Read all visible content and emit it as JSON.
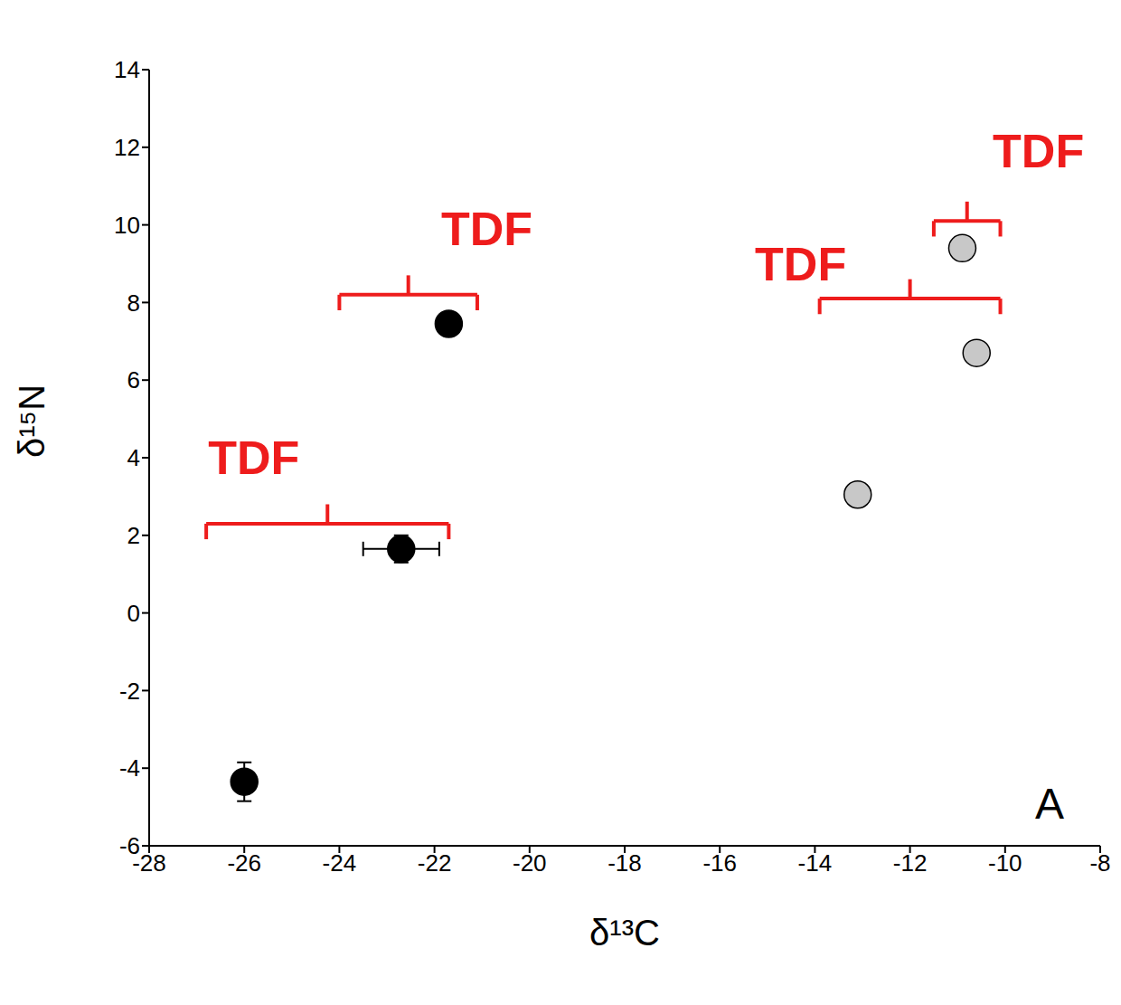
{
  "chart_data": {
    "type": "scatter",
    "x_label": "δ¹³C",
    "y_label": "δ¹⁵N",
    "panel_label": "A",
    "xlim": [
      -28,
      -8
    ],
    "xticks": [
      -28,
      -26,
      -24,
      -22,
      -20,
      -18,
      -16,
      -14,
      -12,
      -10,
      -8
    ],
    "ylim": [
      -6,
      14
    ],
    "yticks": [
      -6,
      -4,
      -2,
      0,
      2,
      4,
      6,
      8,
      10,
      12,
      14
    ],
    "grid": false,
    "series": [
      {
        "color": "#000000",
        "marker": "circle",
        "x": [
          -26.0,
          -22.7,
          -21.7
        ],
        "values": [
          -4.35,
          1.65,
          7.45
        ],
        "x_error": [
          null,
          0.8,
          null
        ],
        "y_error": [
          0.5,
          0.35,
          null
        ]
      },
      {
        "color": "#c8c8c8",
        "marker": "circle",
        "x": [
          -13.1,
          -10.6,
          -10.9
        ],
        "values": [
          3.05,
          6.7,
          9.4
        ],
        "x_error": [
          null,
          null,
          null
        ],
        "y_error": [
          null,
          null,
          null
        ]
      }
    ],
    "annotations": [
      {
        "text": "TDF",
        "color": "#ee1c1c",
        "x": -25.8,
        "y": 4.0,
        "bracket_x": [
          -26.8,
          -21.7
        ],
        "bracket_y": 2.3
      },
      {
        "text": "TDF",
        "color": "#ee1c1c",
        "x": -20.9,
        "y": 9.9,
        "bracket_x": [
          -24.0,
          -21.1
        ],
        "bracket_y": 8.2
      },
      {
        "text": "TDF",
        "color": "#ee1c1c",
        "x": -14.3,
        "y": 9.0,
        "bracket_x": [
          -13.9,
          -10.1
        ],
        "bracket_y": 8.1
      },
      {
        "text": "TDF",
        "color": "#ee1c1c",
        "x": -9.3,
        "y": 11.9,
        "bracket_x": [
          -11.5,
          -10.1
        ],
        "bracket_y": 10.1
      }
    ]
  }
}
